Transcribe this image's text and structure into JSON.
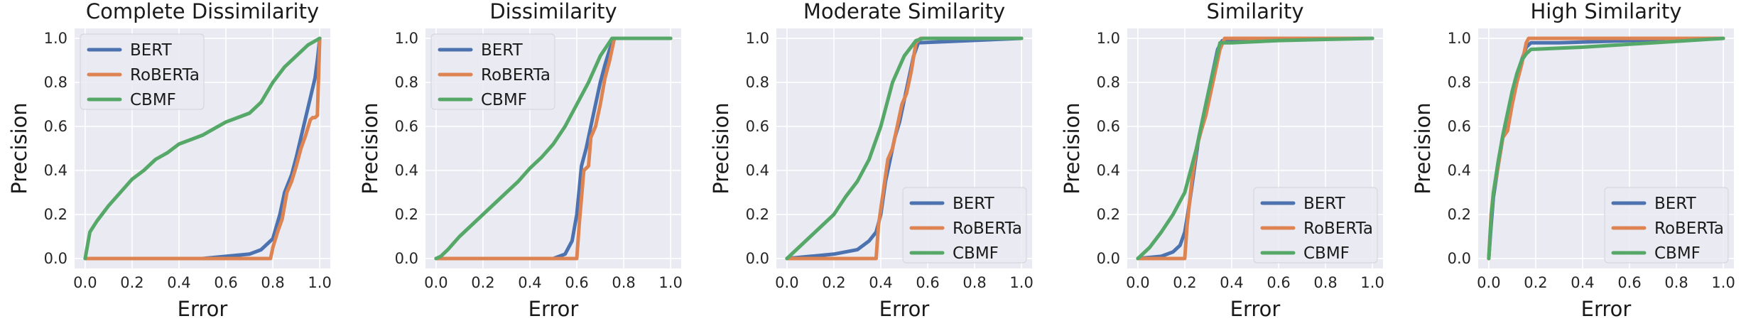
{
  "colors": {
    "BERT": "#4c72b0",
    "RoBERTa": "#dd8452",
    "CBMF": "#55a868",
    "plot_background": "#eaeaf2",
    "grid": "#ffffff"
  },
  "chart_data": [
    {
      "type": "line",
      "title": "Complete Dissimilarity",
      "xlabel": "Error",
      "ylabel": "Precision",
      "xlim": [
        0,
        1
      ],
      "ylim": [
        0,
        1
      ],
      "xticks": [
        "0.0",
        "0.2",
        "0.4",
        "0.6",
        "0.8",
        "1.0"
      ],
      "yticks": [
        "0.0",
        "0.2",
        "0.4",
        "0.6",
        "0.8",
        "1.0"
      ],
      "grid": true,
      "legend_position": "upper-left",
      "series": [
        {
          "name": "BERT",
          "x": [
            0,
            0.5,
            0.6,
            0.7,
            0.75,
            0.8,
            0.83,
            0.85,
            0.88,
            0.9,
            0.92,
            0.94,
            0.96,
            0.98,
            0.99,
            1.0
          ],
          "y": [
            0,
            0,
            0.01,
            0.02,
            0.04,
            0.09,
            0.2,
            0.3,
            0.38,
            0.46,
            0.55,
            0.64,
            0.73,
            0.82,
            0.9,
            1.0
          ]
        },
        {
          "name": "RoBERTa",
          "x": [
            0,
            0.79,
            0.8,
            0.82,
            0.84,
            0.86,
            0.88,
            0.9,
            0.92,
            0.94,
            0.96,
            0.97,
            0.98,
            0.99,
            1.0
          ],
          "y": [
            0,
            0,
            0.05,
            0.12,
            0.18,
            0.3,
            0.35,
            0.42,
            0.5,
            0.56,
            0.63,
            0.64,
            0.64,
            0.65,
            1.0
          ]
        },
        {
          "name": "CBMF",
          "x": [
            0,
            0.02,
            0.05,
            0.1,
            0.15,
            0.2,
            0.25,
            0.3,
            0.35,
            0.4,
            0.45,
            0.5,
            0.55,
            0.6,
            0.65,
            0.7,
            0.75,
            0.8,
            0.85,
            0.9,
            0.95,
            1.0
          ],
          "y": [
            0,
            0.12,
            0.17,
            0.24,
            0.3,
            0.36,
            0.4,
            0.45,
            0.48,
            0.52,
            0.54,
            0.56,
            0.59,
            0.62,
            0.64,
            0.66,
            0.71,
            0.8,
            0.87,
            0.92,
            0.97,
            1.0
          ]
        }
      ]
    },
    {
      "type": "line",
      "title": "Dissimilarity",
      "xlabel": "Error",
      "ylabel": "Precision",
      "xlim": [
        0,
        1
      ],
      "ylim": [
        0,
        1
      ],
      "xticks": [
        "0.0",
        "0.2",
        "0.4",
        "0.6",
        "0.8",
        "1.0"
      ],
      "yticks": [
        "0.0",
        "0.2",
        "0.4",
        "0.6",
        "0.8",
        "1.0"
      ],
      "grid": true,
      "legend_position": "upper-left",
      "series": [
        {
          "name": "BERT",
          "x": [
            0,
            0.5,
            0.55,
            0.58,
            0.6,
            0.62,
            0.64,
            0.66,
            0.68,
            0.7,
            0.72,
            0.74,
            0.76,
            1.0
          ],
          "y": [
            0,
            0,
            0.02,
            0.08,
            0.2,
            0.42,
            0.5,
            0.6,
            0.7,
            0.8,
            0.88,
            0.95,
            1.0,
            1.0
          ]
        },
        {
          "name": "RoBERTa",
          "x": [
            0,
            0.6,
            0.61,
            0.63,
            0.65,
            0.66,
            0.68,
            0.7,
            0.72,
            0.74,
            0.76,
            1.0
          ],
          "y": [
            0,
            0,
            0.15,
            0.4,
            0.42,
            0.55,
            0.6,
            0.7,
            0.82,
            0.9,
            1.0,
            1.0
          ]
        },
        {
          "name": "CBMF",
          "x": [
            0,
            0.02,
            0.05,
            0.1,
            0.15,
            0.2,
            0.25,
            0.3,
            0.35,
            0.4,
            0.45,
            0.5,
            0.55,
            0.6,
            0.65,
            0.7,
            0.75,
            1.0
          ],
          "y": [
            0,
            0.01,
            0.04,
            0.1,
            0.15,
            0.2,
            0.25,
            0.3,
            0.35,
            0.41,
            0.46,
            0.52,
            0.6,
            0.7,
            0.8,
            0.92,
            1.0,
            1.0
          ]
        }
      ]
    },
    {
      "type": "line",
      "title": "Moderate Similarity",
      "xlabel": "Error",
      "ylabel": "Precision",
      "xlim": [
        0,
        1
      ],
      "ylim": [
        0,
        1
      ],
      "xticks": [
        "0.0",
        "0.2",
        "0.4",
        "0.6",
        "0.8",
        "1.0"
      ],
      "yticks": [
        "0.0",
        "0.2",
        "0.4",
        "0.6",
        "0.8",
        "1.0"
      ],
      "grid": true,
      "legend_position": "lower-right",
      "series": [
        {
          "name": "BERT",
          "x": [
            0,
            0.1,
            0.2,
            0.3,
            0.35,
            0.38,
            0.4,
            0.42,
            0.44,
            0.46,
            0.48,
            0.5,
            0.52,
            0.54,
            0.56,
            1.0
          ],
          "y": [
            0,
            0.01,
            0.02,
            0.04,
            0.08,
            0.12,
            0.2,
            0.35,
            0.45,
            0.55,
            0.62,
            0.72,
            0.82,
            0.92,
            0.98,
            1.0
          ]
        },
        {
          "name": "RoBERTa",
          "x": [
            0,
            0.38,
            0.39,
            0.41,
            0.43,
            0.45,
            0.47,
            0.49,
            0.51,
            0.53,
            0.55,
            0.57,
            1.0
          ],
          "y": [
            0,
            0,
            0.15,
            0.3,
            0.45,
            0.5,
            0.6,
            0.7,
            0.75,
            0.85,
            0.98,
            1.0,
            1.0
          ]
        },
        {
          "name": "CBMF",
          "x": [
            0,
            0.05,
            0.1,
            0.15,
            0.2,
            0.25,
            0.3,
            0.35,
            0.4,
            0.45,
            0.5,
            0.55,
            0.58,
            1.0
          ],
          "y": [
            0,
            0.05,
            0.1,
            0.15,
            0.2,
            0.28,
            0.35,
            0.45,
            0.6,
            0.8,
            0.92,
            0.99,
            1.0,
            1.0
          ]
        }
      ]
    },
    {
      "type": "line",
      "title": "Similarity",
      "xlabel": "Error",
      "ylabel": "Precision",
      "xlim": [
        0,
        1
      ],
      "ylim": [
        0,
        1
      ],
      "xticks": [
        "0.0",
        "0.2",
        "0.4",
        "0.6",
        "0.8",
        "1.0"
      ],
      "yticks": [
        "0.0",
        "0.2",
        "0.4",
        "0.6",
        "0.8",
        "1.0"
      ],
      "grid": true,
      "legend_position": "lower-right",
      "series": [
        {
          "name": "BERT",
          "x": [
            0,
            0.1,
            0.15,
            0.18,
            0.2,
            0.22,
            0.24,
            0.26,
            0.28,
            0.3,
            0.32,
            0.34,
            0.36,
            0.5,
            0.8,
            1.0
          ],
          "y": [
            0,
            0.01,
            0.03,
            0.06,
            0.12,
            0.25,
            0.4,
            0.55,
            0.65,
            0.75,
            0.85,
            0.95,
            0.99,
            0.99,
            1.0,
            1.0
          ]
        },
        {
          "name": "RoBERTa",
          "x": [
            0,
            0.2,
            0.21,
            0.23,
            0.25,
            0.27,
            0.29,
            0.31,
            0.33,
            0.35,
            0.37,
            1.0
          ],
          "y": [
            0,
            0,
            0.15,
            0.35,
            0.5,
            0.58,
            0.65,
            0.75,
            0.85,
            0.95,
            1.0,
            1.0
          ]
        },
        {
          "name": "CBMF",
          "x": [
            0,
            0.05,
            0.1,
            0.15,
            0.2,
            0.25,
            0.3,
            0.35,
            0.4,
            0.6,
            0.8,
            1.0
          ],
          "y": [
            0,
            0.05,
            0.12,
            0.2,
            0.3,
            0.5,
            0.75,
            0.98,
            0.98,
            0.99,
            0.995,
            1.0
          ]
        }
      ]
    },
    {
      "type": "line",
      "title": "High Similarity",
      "xlabel": "Error",
      "ylabel": "Precision",
      "xlim": [
        0,
        1
      ],
      "ylim": [
        0,
        1
      ],
      "xticks": [
        "0.0",
        "0.2",
        "0.4",
        "0.6",
        "0.8",
        "1.0"
      ],
      "yticks": [
        "0.0",
        "0.2",
        "0.4",
        "0.6",
        "0.8",
        "1.0"
      ],
      "grid": true,
      "legend_position": "lower-right",
      "series": [
        {
          "name": "BERT",
          "x": [
            0,
            0.01,
            0.02,
            0.04,
            0.06,
            0.08,
            0.1,
            0.12,
            0.14,
            0.16,
            0.18,
            0.3,
            0.6,
            1.0
          ],
          "y": [
            0,
            0.15,
            0.28,
            0.42,
            0.55,
            0.65,
            0.74,
            0.82,
            0.9,
            0.96,
            0.98,
            0.98,
            0.99,
            1.0
          ]
        },
        {
          "name": "RoBERTa",
          "x": [
            0,
            0.01,
            0.02,
            0.04,
            0.06,
            0.08,
            0.1,
            0.12,
            0.14,
            0.16,
            0.17,
            1.0
          ],
          "y": [
            0,
            0.2,
            0.3,
            0.42,
            0.55,
            0.58,
            0.7,
            0.8,
            0.88,
            0.98,
            1.0,
            1.0
          ]
        },
        {
          "name": "CBMF",
          "x": [
            0,
            0.01,
            0.02,
            0.04,
            0.06,
            0.08,
            0.1,
            0.12,
            0.14,
            0.16,
            0.18,
            0.4,
            0.7,
            1.0
          ],
          "y": [
            0,
            0.18,
            0.3,
            0.44,
            0.56,
            0.66,
            0.76,
            0.84,
            0.9,
            0.93,
            0.95,
            0.96,
            0.98,
            1.0
          ]
        }
      ]
    }
  ]
}
